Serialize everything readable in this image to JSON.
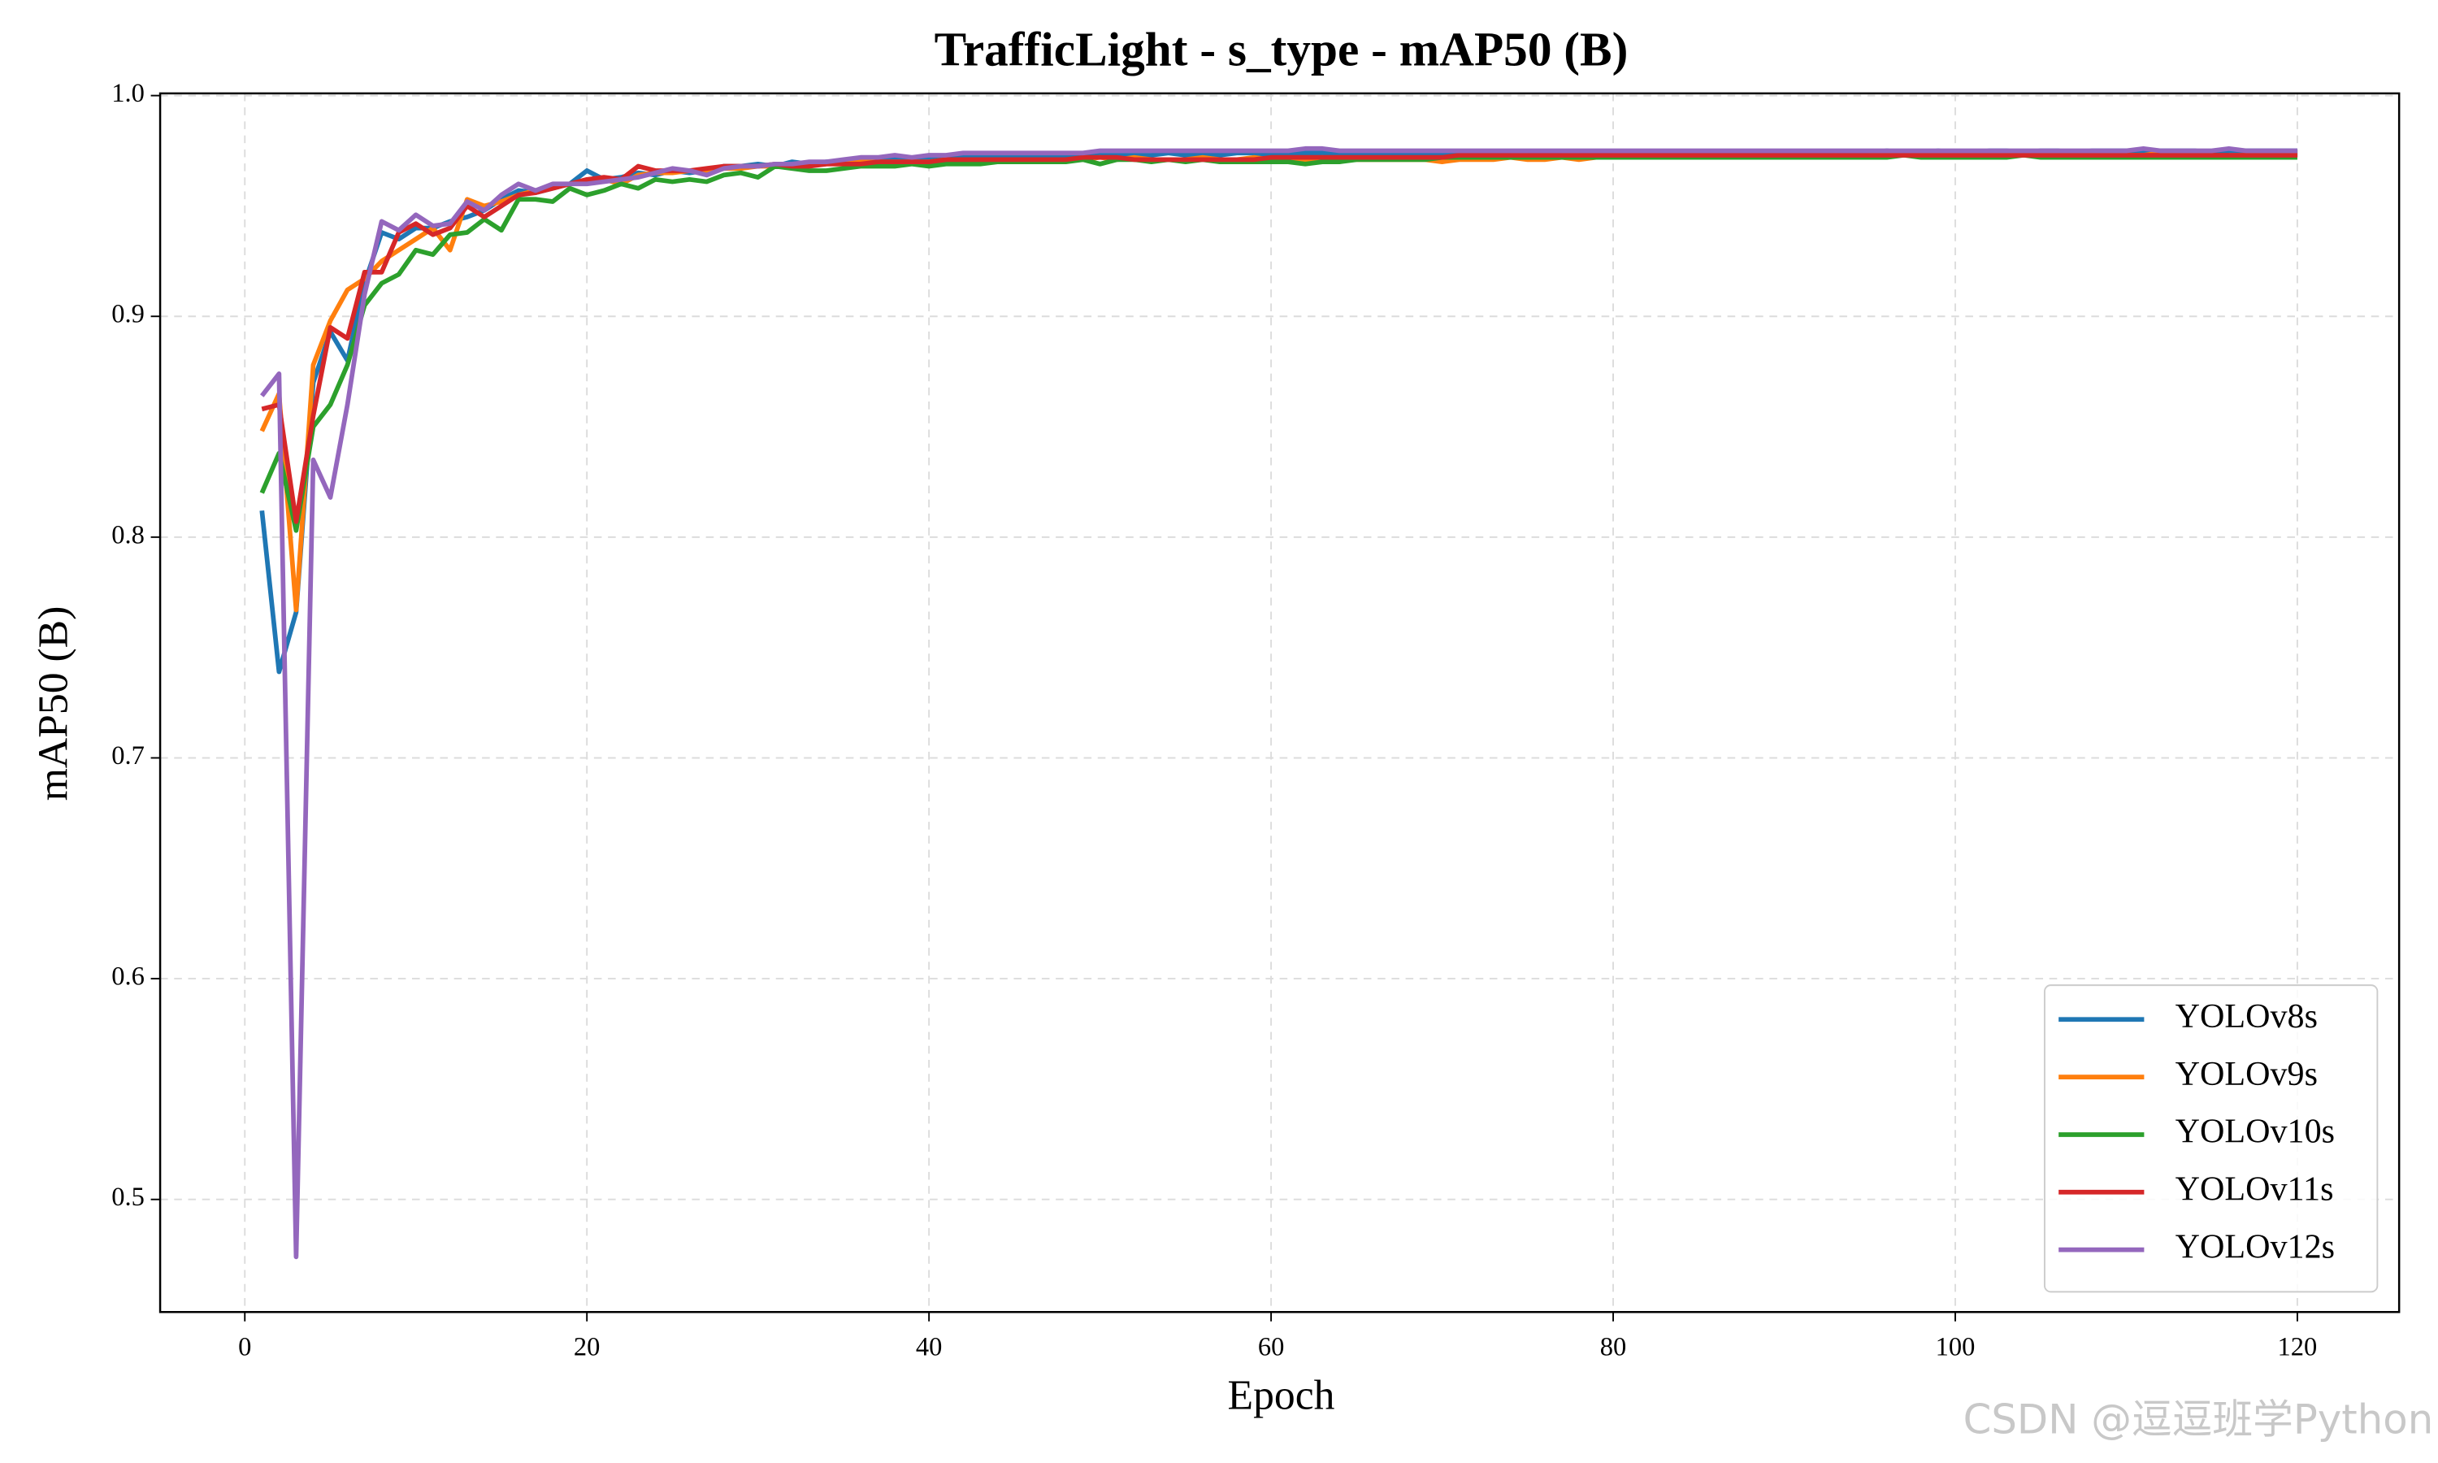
{
  "chart_data": {
    "type": "line",
    "title": "TrafficLight - s_type - mAP50 (B)",
    "x_label": "Epoch",
    "y_label": "mAP50 (B)",
    "watermark": "CSDN @逗逗班学Python",
    "grid": true,
    "legend": "lower right",
    "xlim": [
      -4.95,
      125.95
    ],
    "ylim": [
      0.449,
      1.001
    ],
    "xticks": [
      0,
      20,
      40,
      60,
      80,
      100,
      120
    ],
    "yticks": [
      0.5,
      0.6,
      0.7,
      0.8,
      0.9,
      {
        "value": 1,
        "label": "1.0"
      }
    ],
    "x": [
      1,
      2,
      3,
      4,
      5,
      6,
      7,
      8,
      9,
      10,
      11,
      12,
      13,
      14,
      15,
      16,
      17,
      18,
      19,
      20,
      21,
      22,
      23,
      24,
      25,
      26,
      27,
      28,
      29,
      30,
      31,
      32,
      33,
      34,
      35,
      36,
      37,
      38,
      39,
      40,
      41,
      42,
      43,
      44,
      45,
      46,
      47,
      48,
      49,
      50,
      51,
      52,
      53,
      54,
      55,
      56,
      57,
      58,
      59,
      60,
      61,
      62,
      63,
      64,
      65,
      66,
      67,
      68,
      69,
      70,
      71,
      72,
      73,
      74,
      75,
      76,
      77,
      78,
      79,
      80,
      81,
      82,
      83,
      84,
      85,
      86,
      87,
      88,
      89,
      90,
      91,
      92,
      93,
      94,
      95,
      96,
      97,
      98,
      99,
      100,
      101,
      102,
      103,
      104,
      105,
      106,
      107,
      108,
      109,
      110,
      111,
      112,
      113,
      114,
      115,
      116,
      117,
      118,
      119,
      120
    ],
    "series": [
      {
        "name": "YOLOv8s",
        "color": "#1f77b4",
        "values": [
          0.812,
          0.739,
          0.766,
          0.87,
          0.893,
          0.88,
          0.915,
          0.938,
          0.935,
          0.94,
          0.94,
          0.943,
          0.945,
          0.948,
          0.953,
          0.957,
          0.956,
          0.958,
          0.96,
          0.966,
          0.962,
          0.963,
          0.965,
          0.964,
          0.966,
          0.965,
          0.966,
          0.968,
          0.968,
          0.969,
          0.968,
          0.97,
          0.969,
          0.97,
          0.97,
          0.971,
          0.971,
          0.972,
          0.971,
          0.972,
          0.972,
          0.972,
          0.972,
          0.972,
          0.973,
          0.972,
          0.973,
          0.973,
          0.972,
          0.973,
          0.973,
          0.973,
          0.973,
          0.974,
          0.973,
          0.974,
          0.973,
          0.974,
          0.974,
          0.973,
          0.974,
          0.974,
          0.974,
          0.973,
          0.974,
          0.974,
          0.973,
          0.974,
          0.974,
          0.973,
          0.974,
          0.973,
          0.974,
          0.973,
          0.973,
          0.974,
          0.973,
          0.973,
          0.974,
          0.973,
          0.973,
          0.974,
          0.973,
          0.974,
          0.973,
          0.974,
          0.974,
          0.973,
          0.974,
          0.974,
          0.974,
          0.974,
          0.974,
          0.974,
          0.974,
          0.975,
          0.974,
          0.974,
          0.975,
          0.974,
          0.974,
          0.975,
          0.975,
          0.974,
          0.975,
          0.975,
          0.974,
          0.975,
          0.975,
          0.975,
          0.975,
          0.975,
          0.975,
          0.975,
          0.974,
          0.975,
          0.975,
          0.975,
          0.975,
          0.975
        ]
      },
      {
        "name": "YOLOv9s",
        "color": "#ff7f0e",
        "values": [
          0.848,
          0.865,
          0.767,
          0.878,
          0.898,
          0.912,
          0.917,
          0.925,
          0.93,
          0.935,
          0.94,
          0.93,
          0.953,
          0.95,
          0.952,
          0.955,
          0.957,
          0.958,
          0.96,
          0.961,
          0.962,
          0.96,
          0.964,
          0.965,
          0.965,
          0.966,
          0.966,
          0.967,
          0.967,
          0.968,
          0.968,
          0.968,
          0.969,
          0.969,
          0.969,
          0.97,
          0.97,
          0.97,
          0.97,
          0.97,
          0.971,
          0.97,
          0.971,
          0.971,
          0.971,
          0.971,
          0.971,
          0.971,
          0.971,
          0.972,
          0.971,
          0.972,
          0.971,
          0.971,
          0.971,
          0.972,
          0.971,
          0.971,
          0.972,
          0.971,
          0.971,
          0.971,
          0.972,
          0.971,
          0.971,
          0.971,
          0.971,
          0.971,
          0.971,
          0.97,
          0.971,
          0.971,
          0.971,
          0.972,
          0.971,
          0.971,
          0.972,
          0.971,
          0.972,
          0.972,
          0.972,
          0.972,
          0.972,
          0.972,
          0.972,
          0.972,
          0.972,
          0.972,
          0.972,
          0.972,
          0.972,
          0.972,
          0.973,
          0.972,
          0.973,
          0.973,
          0.973,
          0.973,
          0.973,
          0.973,
          0.973,
          0.973,
          0.973,
          0.973,
          0.973,
          0.973,
          0.973,
          0.973,
          0.973,
          0.973,
          0.973,
          0.974,
          0.973,
          0.973,
          0.973,
          0.972,
          0.973,
          0.973,
          0.973,
          0.973
        ]
      },
      {
        "name": "YOLOv10s",
        "color": "#2ca02c",
        "values": [
          0.82,
          0.838,
          0.803,
          0.85,
          0.86,
          0.878,
          0.905,
          0.915,
          0.919,
          0.93,
          0.928,
          0.937,
          0.938,
          0.944,
          0.939,
          0.953,
          0.953,
          0.952,
          0.958,
          0.955,
          0.957,
          0.96,
          0.958,
          0.962,
          0.961,
          0.962,
          0.961,
          0.964,
          0.965,
          0.963,
          0.968,
          0.967,
          0.966,
          0.966,
          0.967,
          0.968,
          0.968,
          0.968,
          0.969,
          0.968,
          0.969,
          0.969,
          0.969,
          0.97,
          0.97,
          0.97,
          0.97,
          0.97,
          0.971,
          0.969,
          0.971,
          0.971,
          0.97,
          0.971,
          0.97,
          0.971,
          0.97,
          0.97,
          0.97,
          0.97,
          0.97,
          0.969,
          0.97,
          0.97,
          0.971,
          0.971,
          0.971,
          0.971,
          0.971,
          0.972,
          0.972,
          0.972,
          0.972,
          0.972,
          0.972,
          0.972,
          0.972,
          0.972,
          0.972,
          0.972,
          0.972,
          0.972,
          0.972,
          0.972,
          0.972,
          0.972,
          0.972,
          0.972,
          0.972,
          0.972,
          0.972,
          0.972,
          0.972,
          0.972,
          0.972,
          0.972,
          0.973,
          0.972,
          0.972,
          0.972,
          0.972,
          0.972,
          0.972,
          0.973,
          0.972,
          0.972,
          0.972,
          0.972,
          0.972,
          0.972,
          0.972,
          0.972,
          0.972,
          0.972,
          0.972,
          0.972,
          0.972,
          0.972,
          0.972,
          0.972
        ]
      },
      {
        "name": "YOLOv11s",
        "color": "#d62728",
        "values": [
          0.858,
          0.86,
          0.807,
          0.855,
          0.895,
          0.89,
          0.92,
          0.92,
          0.938,
          0.942,
          0.937,
          0.94,
          0.95,
          0.945,
          0.95,
          0.955,
          0.956,
          0.958,
          0.96,
          0.962,
          0.963,
          0.962,
          0.968,
          0.966,
          0.966,
          0.966,
          0.967,
          0.968,
          0.968,
          0.968,
          0.969,
          0.968,
          0.968,
          0.969,
          0.969,
          0.969,
          0.97,
          0.97,
          0.97,
          0.97,
          0.971,
          0.971,
          0.971,
          0.971,
          0.971,
          0.971,
          0.971,
          0.971,
          0.972,
          0.972,
          0.972,
          0.971,
          0.971,
          0.971,
          0.971,
          0.971,
          0.971,
          0.971,
          0.971,
          0.972,
          0.972,
          0.972,
          0.972,
          0.972,
          0.972,
          0.972,
          0.972,
          0.972,
          0.972,
          0.972,
          0.973,
          0.973,
          0.973,
          0.973,
          0.973,
          0.973,
          0.973,
          0.973,
          0.973,
          0.973,
          0.973,
          0.973,
          0.973,
          0.973,
          0.973,
          0.973,
          0.973,
          0.973,
          0.973,
          0.973,
          0.973,
          0.973,
          0.973,
          0.973,
          0.973,
          0.973,
          0.973,
          0.973,
          0.973,
          0.973,
          0.973,
          0.973,
          0.973,
          0.973,
          0.973,
          0.973,
          0.973,
          0.973,
          0.973,
          0.973,
          0.973,
          0.973,
          0.973,
          0.973,
          0.973,
          0.973,
          0.973,
          0.973,
          0.973,
          0.973
        ]
      },
      {
        "name": "YOLOv12s",
        "color": "#9467bd",
        "values": [
          0.864,
          0.874,
          0.474,
          0.835,
          0.818,
          0.86,
          0.91,
          0.943,
          0.939,
          0.946,
          0.941,
          0.942,
          0.952,
          0.948,
          0.955,
          0.96,
          0.957,
          0.96,
          0.96,
          0.96,
          0.961,
          0.962,
          0.963,
          0.965,
          0.967,
          0.966,
          0.964,
          0.967,
          0.968,
          0.968,
          0.969,
          0.969,
          0.97,
          0.97,
          0.971,
          0.972,
          0.972,
          0.973,
          0.972,
          0.973,
          0.973,
          0.974,
          0.974,
          0.974,
          0.974,
          0.974,
          0.974,
          0.974,
          0.974,
          0.975,
          0.975,
          0.975,
          0.975,
          0.975,
          0.975,
          0.975,
          0.975,
          0.975,
          0.975,
          0.975,
          0.975,
          0.976,
          0.976,
          0.975,
          0.975,
          0.975,
          0.975,
          0.975,
          0.975,
          0.975,
          0.975,
          0.975,
          0.975,
          0.975,
          0.975,
          0.975,
          0.975,
          0.975,
          0.975,
          0.975,
          0.975,
          0.975,
          0.975,
          0.975,
          0.975,
          0.975,
          0.975,
          0.975,
          0.975,
          0.975,
          0.975,
          0.975,
          0.975,
          0.975,
          0.975,
          0.975,
          0.975,
          0.975,
          0.975,
          0.975,
          0.975,
          0.975,
          0.975,
          0.975,
          0.975,
          0.975,
          0.975,
          0.975,
          0.975,
          0.975,
          0.976,
          0.975,
          0.975,
          0.975,
          0.975,
          0.976,
          0.975,
          0.975,
          0.975,
          0.975
        ]
      }
    ]
  }
}
